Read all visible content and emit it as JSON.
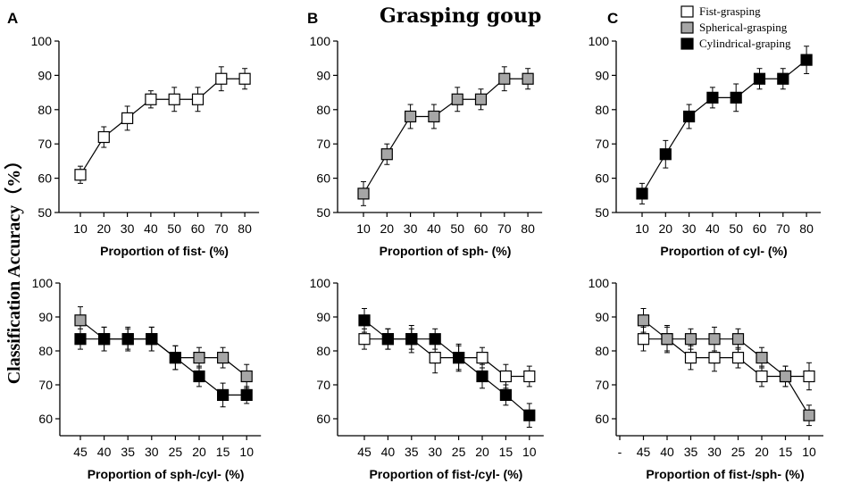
{
  "figure": {
    "title": "Grasping goup",
    "ylabel": "Classification Accuracy（%）"
  },
  "legend": [
    {
      "label": "Fist-grasping",
      "color": "#ffffff"
    },
    {
      "label": "Spherical-grasping",
      "color": "#a6a6a6"
    },
    {
      "label": "Cylindrical-graping",
      "color": "#000000"
    }
  ],
  "chart_data": [
    {
      "type": "line",
      "panel": "A",
      "xlabel": "Proportion of fist- (%)",
      "categories": [
        "10",
        "20",
        "30",
        "40",
        "50",
        "60",
        "70",
        "80"
      ],
      "ylim": [
        50,
        100
      ],
      "yticks": [
        50,
        60,
        70,
        80,
        90,
        100
      ],
      "series": [
        {
          "name": "Fist-grasping",
          "color": "#ffffff",
          "values": [
            61,
            72,
            77.5,
            83,
            83,
            83,
            89,
            89
          ],
          "errors": [
            2.5,
            3,
            3.5,
            2.5,
            3.5,
            3.5,
            3.5,
            3
          ]
        }
      ]
    },
    {
      "type": "line",
      "panel": "B",
      "xlabel": "Proportion of sph- (%)",
      "categories": [
        "10",
        "20",
        "30",
        "40",
        "50",
        "60",
        "70",
        "80"
      ],
      "ylim": [
        50,
        100
      ],
      "yticks": [
        50,
        60,
        70,
        80,
        90,
        100
      ],
      "series": [
        {
          "name": "Spherical-grasping",
          "color": "#a6a6a6",
          "values": [
            55.5,
            67,
            78,
            78,
            83,
            83,
            89,
            89
          ],
          "errors": [
            3.5,
            3,
            3.5,
            3.5,
            3.5,
            3,
            3.5,
            3
          ]
        }
      ]
    },
    {
      "type": "line",
      "panel": "C",
      "xlabel": "Proportion of cyl- (%)",
      "categories": [
        "10",
        "20",
        "30",
        "40",
        "50",
        "60",
        "70",
        "80"
      ],
      "ylim": [
        50,
        100
      ],
      "yticks": [
        50,
        60,
        70,
        80,
        90,
        100
      ],
      "series": [
        {
          "name": "Cylindrical-graping",
          "color": "#000000",
          "values": [
            55.5,
            67,
            78,
            83.5,
            83.5,
            89,
            89,
            94.5
          ],
          "errors": [
            3,
            4,
            3.5,
            3,
            4,
            3,
            3,
            4
          ]
        }
      ]
    },
    {
      "type": "line",
      "panel": "A2",
      "xlabel": "Proportion of sph-/cyl- (%)",
      "categories": [
        "45",
        "40",
        "35",
        "30",
        "25",
        "20",
        "15",
        "10"
      ],
      "ylim": [
        55,
        100
      ],
      "yticks": [
        60,
        70,
        80,
        90,
        100
      ],
      "series": [
        {
          "name": "Spherical-grasping",
          "color": "#a6a6a6",
          "values": [
            89,
            83.5,
            83.5,
            83.5,
            78,
            78,
            78,
            72.5
          ],
          "errors": [
            4,
            3.5,
            3.5,
            3.5,
            3.5,
            3,
            3,
            3.5
          ]
        },
        {
          "name": "Cylindrical-graping",
          "color": "#000000",
          "values": [
            83.5,
            83.5,
            83.5,
            83.5,
            78,
            72.5,
            67,
            67
          ],
          "errors": [
            3,
            3.5,
            3,
            3.5,
            3.5,
            3,
            3.5,
            2.5
          ]
        }
      ]
    },
    {
      "type": "line",
      "panel": "B2",
      "xlabel": "Proportion of fist-/cyl- (%)",
      "categories": [
        "45",
        "40",
        "35",
        "30",
        "25",
        "20",
        "15",
        "10"
      ],
      "ylim": [
        55,
        100
      ],
      "yticks": [
        60,
        70,
        80,
        90,
        100
      ],
      "series": [
        {
          "name": "Fist-grasping",
          "color": "#ffffff",
          "values": [
            83.5,
            83.5,
            83.5,
            78,
            78,
            78,
            72.5,
            72.5
          ],
          "errors": [
            3,
            3,
            4,
            4.5,
            4,
            3,
            3.5,
            3
          ]
        },
        {
          "name": "Cylindrical-graping",
          "color": "#000000",
          "values": [
            89,
            83.5,
            83.5,
            83.5,
            78,
            72.5,
            67,
            61
          ],
          "errors": [
            3.5,
            3,
            3,
            3,
            3.5,
            3.5,
            3,
            3.5
          ]
        }
      ]
    },
    {
      "type": "line",
      "panel": "C2",
      "xlabel": "Proportion of fist-/sph- (%)",
      "categories": [
        "-",
        "45",
        "40",
        "35",
        "30",
        "25",
        "20",
        "15",
        "10"
      ],
      "ylim": [
        55,
        100
      ],
      "yticks": [
        60,
        70,
        80,
        90,
        100
      ],
      "series": [
        {
          "name": "Fist-grasping",
          "color": "#ffffff",
          "values": [
            null,
            83.5,
            83.5,
            78,
            78,
            78,
            72.5,
            72.5,
            72.5
          ],
          "errors": [
            null,
            3.5,
            4,
            3.5,
            4,
            3,
            3,
            3,
            4
          ]
        },
        {
          "name": "Spherical-grasping",
          "color": "#a6a6a6",
          "values": [
            null,
            89,
            83.5,
            83.5,
            83.5,
            83.5,
            78,
            72.5,
            61
          ],
          "errors": [
            null,
            3.5,
            3.5,
            3,
            3.5,
            3,
            3,
            3,
            3
          ]
        }
      ]
    }
  ]
}
